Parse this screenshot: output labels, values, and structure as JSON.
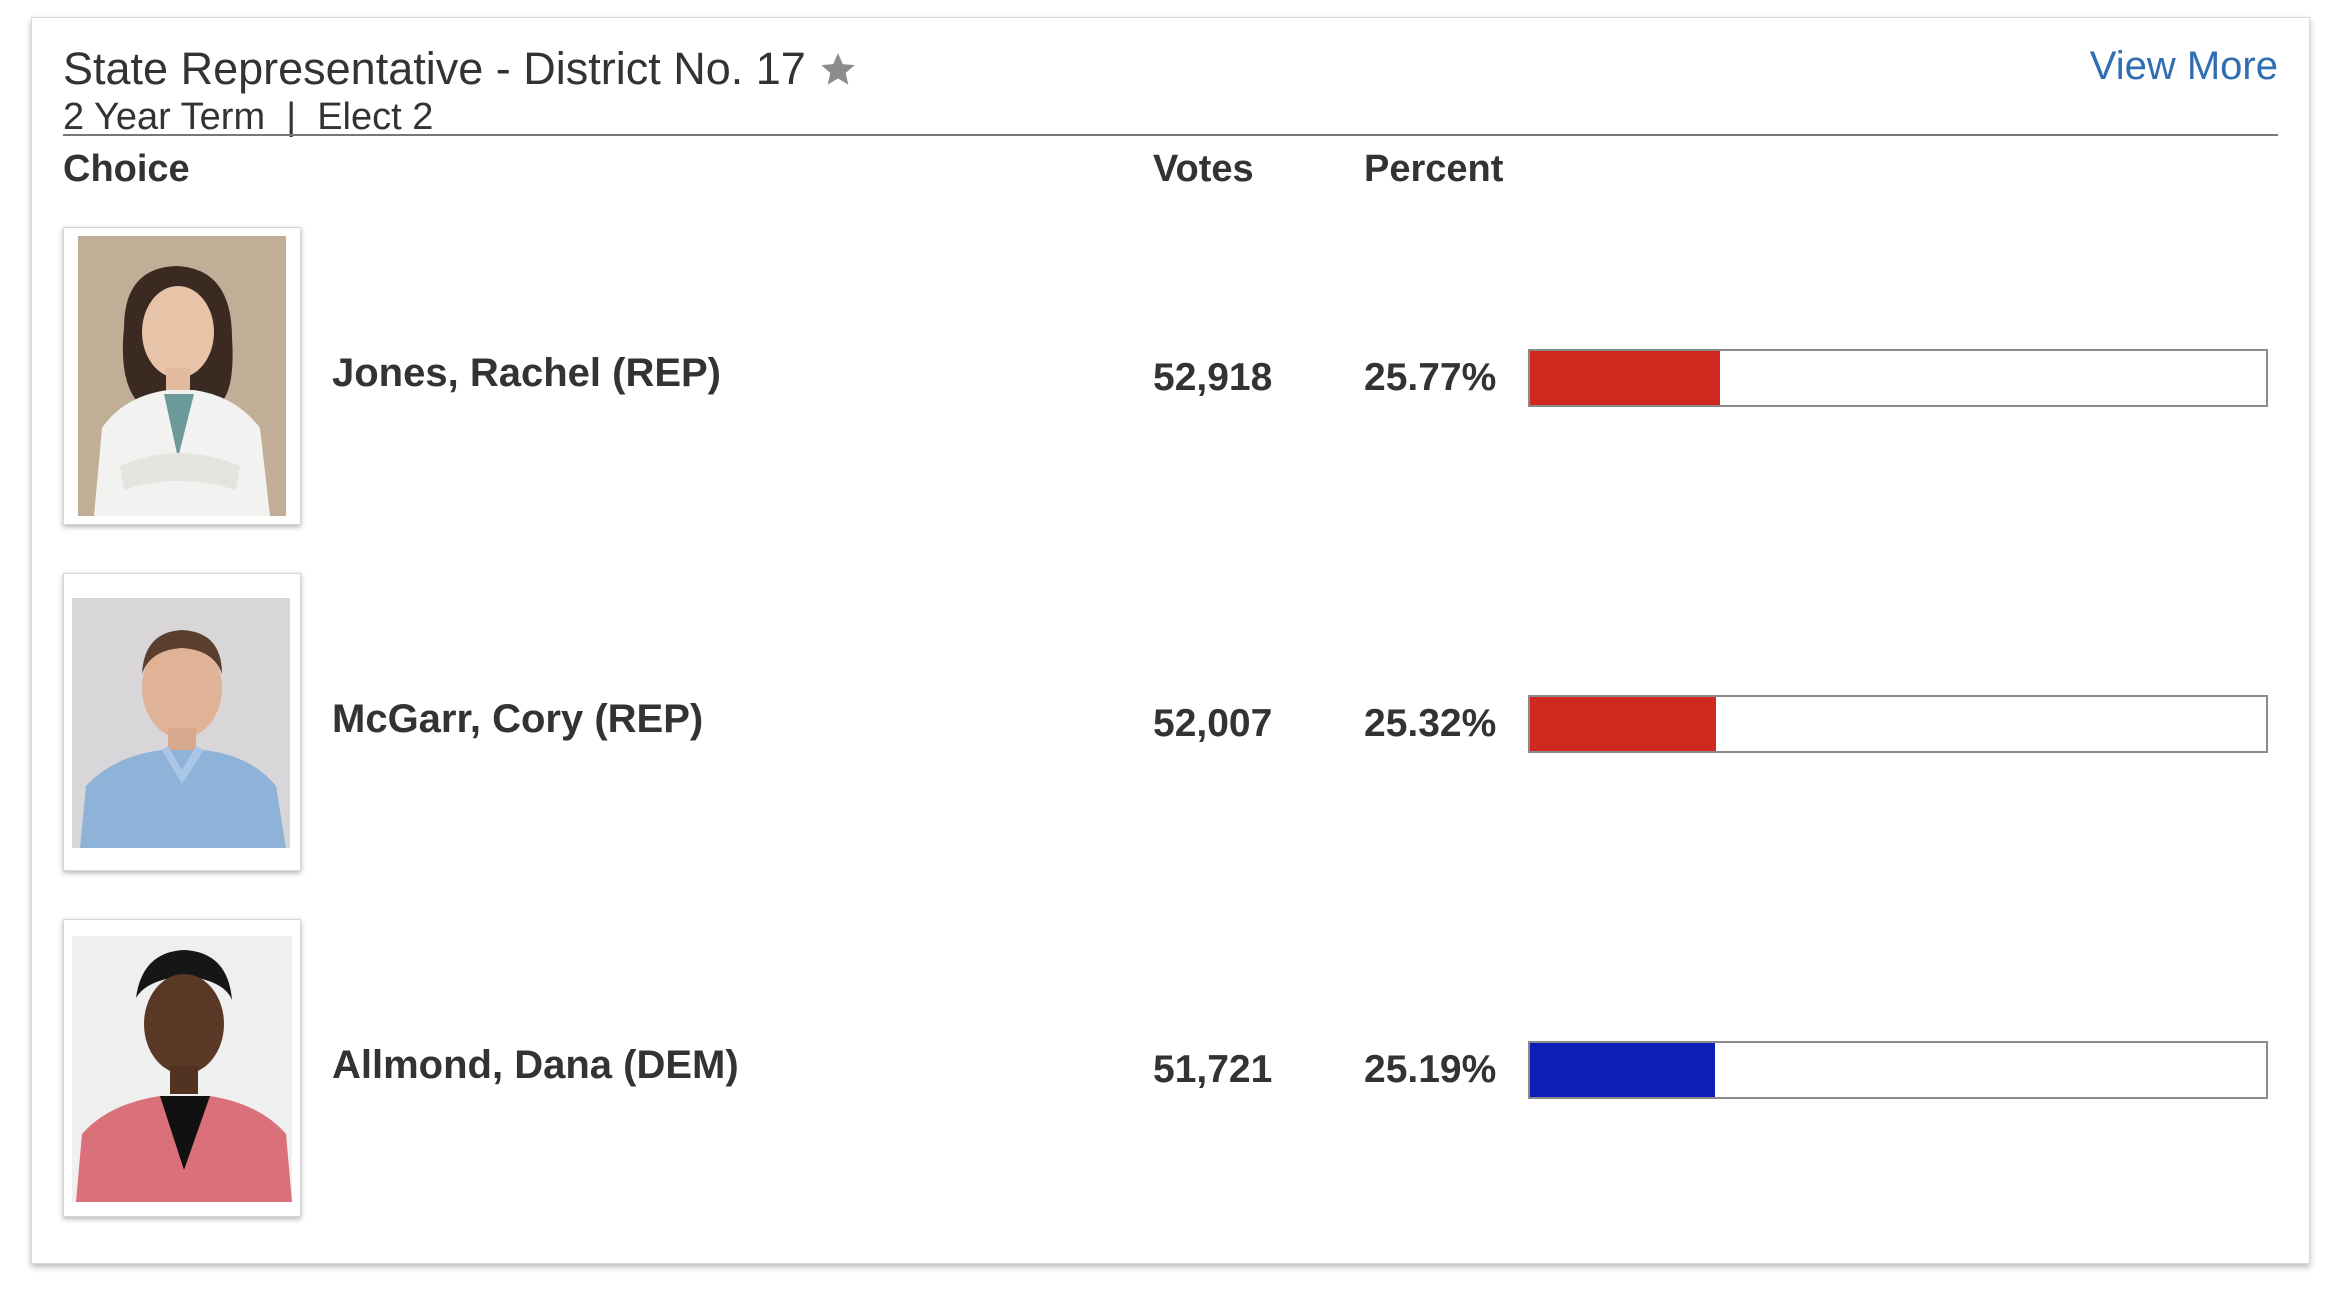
{
  "race": {
    "title": "State Representative - District No. 17",
    "subtitle": "2 Year Term  |  Elect 2",
    "view_more_label": "View More"
  },
  "headers": {
    "choice": "Choice",
    "votes": "Votes",
    "percent": "Percent"
  },
  "colors": {
    "rep": "#d0281e",
    "dem": "#0b1fb8",
    "link": "#2f6eb0"
  },
  "candidates": [
    {
      "name": "Jones, Rachel (REP)",
      "votes": "52,918",
      "percent": "25.77%",
      "share": 25.77,
      "party": "rep"
    },
    {
      "name": "McGarr, Cory (REP)",
      "votes": "52,007",
      "percent": "25.32%",
      "share": 25.32,
      "party": "rep"
    },
    {
      "name": "Allmond, Dana (DEM)",
      "votes": "51,721",
      "percent": "25.19%",
      "share": 25.19,
      "party": "dem"
    }
  ],
  "icons": {
    "favorite": "star-icon"
  }
}
